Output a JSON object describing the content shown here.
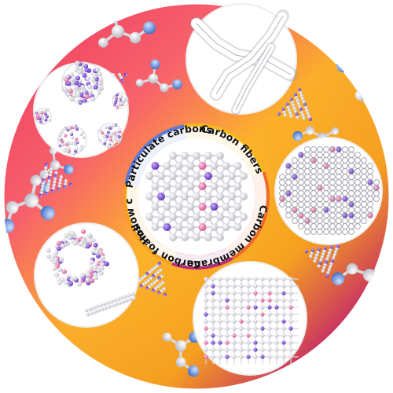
{
  "diagram": {
    "center_ring_labels": [
      "Carbon fibers",
      "Carbon membrane",
      "Carbon foams",
      "Hollow carbons",
      "Particulate carbons"
    ],
    "colors": {
      "background_gradient": [
        "#ee2a6b",
        "#f7567a",
        "#fb8a2e",
        "#fcc21a",
        "#f5a21e",
        "#c2246a",
        "#3b2a9b"
      ],
      "ring_segments": [
        "#f5b81c",
        "#f06a2b",
        "#b62d7a",
        "#f5a21e",
        "#5b79d6"
      ],
      "atom_white": "#e9e9ee",
      "atom_blue": "#4f82d8",
      "atom_purple": "#6a3fbf",
      "atom_pink": "#e0609a"
    },
    "panels": [
      {
        "name": "particulate",
        "icon": "fullerene-cluster-icon"
      },
      {
        "name": "fibers",
        "icon": "nanotube-bundle-icon"
      },
      {
        "name": "membrane",
        "icon": "graphene-sheet-icon"
      },
      {
        "name": "foams",
        "icon": "carbon-lattice-cube-icon"
      },
      {
        "name": "hollow",
        "icon": "hollow-sphere-icon"
      }
    ]
  }
}
